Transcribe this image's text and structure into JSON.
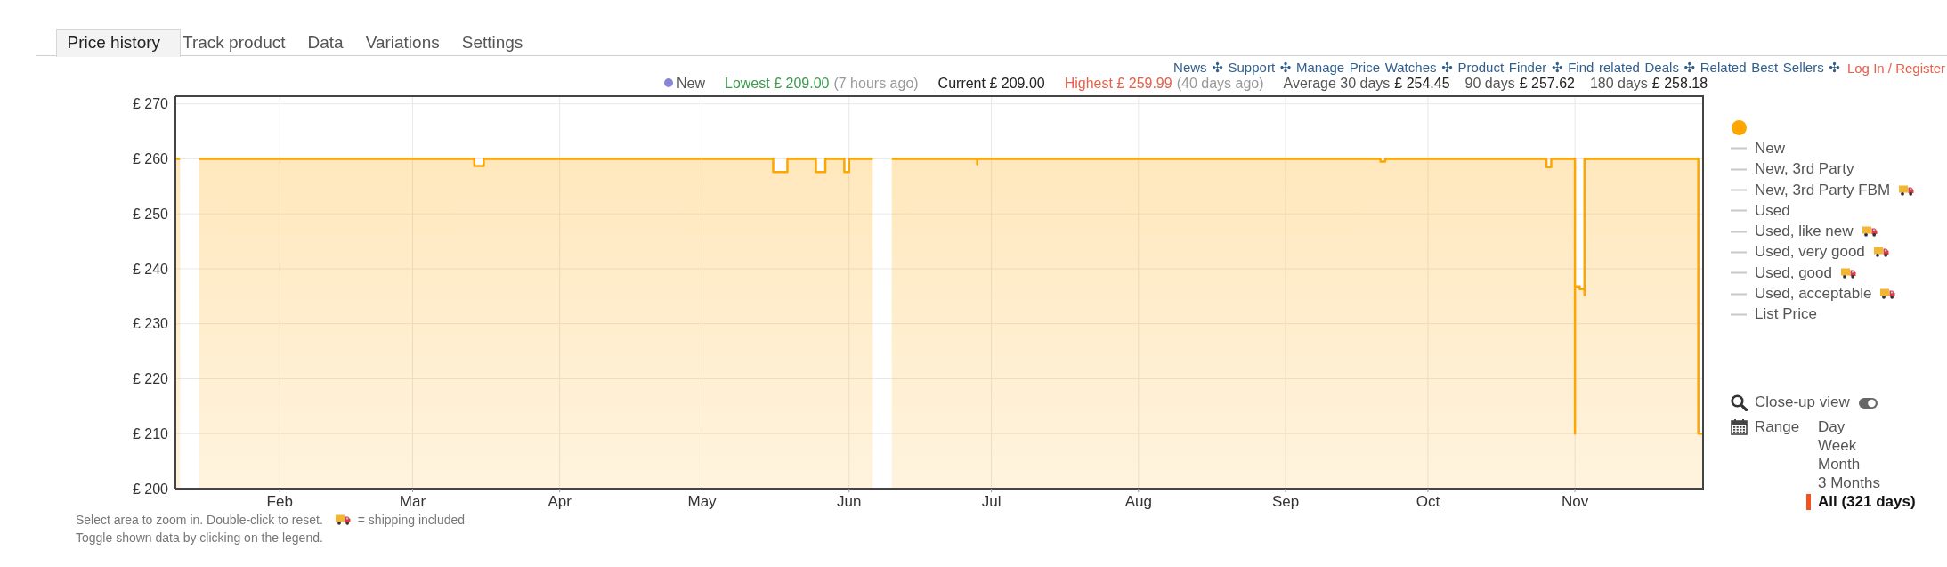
{
  "chart_data": {
    "type": "area",
    "x": [
      "--01-10",
      "--01-11",
      "--01-13",
      "--01-15",
      "--03-14",
      "--03-14",
      "--03-16",
      "--03-16",
      "--05-16",
      "--05-16",
      "--05-19",
      "--05-19",
      "--05-25",
      "--05-25",
      "--05-27",
      "--05-27",
      "--05-31",
      "--05-31",
      "--06-01",
      "--06-01",
      "--06-06",
      "--06-08",
      "--06-10",
      "--06-28",
      "--06-28",
      "--06-28",
      "--09-21",
      "--09-21",
      "--09-22",
      "--09-22",
      "--10-26",
      "--10-26",
      "--10-27",
      "--10-27",
      "--11-01",
      "--11-01",
      "--11-01",
      "--11-01",
      "--11-02",
      "--11-02",
      "--11-03",
      "--11-03",
      "--11-03",
      "--11-27",
      "--11-27",
      "--11-28"
    ],
    "series": [
      {
        "color": "#ffa500",
        "values": [
          260,
          260,
          null,
          260,
          260,
          258.7,
          258.7,
          260,
          260,
          257.6,
          257.6,
          260,
          260,
          257.6,
          257.6,
          260,
          260,
          257.6,
          257.6,
          260,
          260,
          null,
          260,
          260,
          259,
          260,
          260,
          259.5,
          259.5,
          260,
          260,
          258.5,
          258.5,
          260,
          260,
          210,
          260,
          236.8,
          236.8,
          236.3,
          236.3,
          235.2,
          260,
          260,
          210,
          210
        ]
      },
      {
        "name": "New",
        "color": "#c8c8c8",
        "values": [
          null,
          null,
          null,
          null,
          null,
          null,
          null,
          null,
          null,
          null,
          null,
          null,
          null,
          null,
          null,
          null,
          null,
          null,
          null,
          null,
          null,
          null,
          null,
          null,
          null,
          null,
          null,
          null,
          null,
          null,
          null,
          null,
          null,
          null,
          null,
          null,
          null,
          null,
          null,
          null,
          null,
          null,
          null,
          null,
          null,
          null
        ]
      },
      {
        "name": "New, 3rd Party",
        "color": "#c8c8c8",
        "values": [
          null,
          null,
          null,
          null,
          null,
          null,
          null,
          null,
          null,
          null,
          null,
          null,
          null,
          null,
          null,
          null,
          null,
          null,
          null,
          null,
          null,
          null,
          null,
          null,
          null,
          null,
          null,
          null,
          null,
          null,
          null,
          null,
          null,
          null,
          null,
          null,
          null,
          null,
          null,
          null,
          null,
          null,
          null,
          null,
          null,
          null
        ]
      },
      {
        "name": "New, 3rd Party FBM",
        "color": "#c8c8c8",
        "values": [
          null,
          null,
          null,
          null,
          null,
          null,
          null,
          null,
          null,
          null,
          null,
          null,
          null,
          null,
          null,
          null,
          null,
          null,
          null,
          null,
          null,
          null,
          null,
          null,
          null,
          null,
          null,
          null,
          null,
          null,
          null,
          null,
          null,
          null,
          null,
          null,
          null,
          null,
          null,
          null,
          null,
          null,
          null,
          null,
          null,
          null
        ]
      },
      {
        "name": "Used",
        "color": "#c8c8c8",
        "values": [
          null,
          null,
          null,
          null,
          null,
          null,
          null,
          null,
          null,
          null,
          null,
          null,
          null,
          null,
          null,
          null,
          null,
          null,
          null,
          null,
          null,
          null,
          null,
          null,
          null,
          null,
          null,
          null,
          null,
          null,
          null,
          null,
          null,
          null,
          null,
          null,
          null,
          null,
          null,
          null,
          null,
          null,
          null,
          null,
          null,
          null
        ]
      },
      {
        "name": "Used, like new",
        "color": "#c8c8c8",
        "values": [
          null,
          null,
          null,
          null,
          null,
          null,
          null,
          null,
          null,
          null,
          null,
          null,
          null,
          null,
          null,
          null,
          null,
          null,
          null,
          null,
          null,
          null,
          null,
          null,
          null,
          null,
          null,
          null,
          null,
          null,
          null,
          null,
          null,
          null,
          null,
          null,
          null,
          null,
          null,
          null,
          null,
          null,
          null,
          null,
          null,
          null
        ]
      },
      {
        "name": "Used, very good",
        "color": "#c8c8c8",
        "values": [
          null,
          null,
          null,
          null,
          null,
          null,
          null,
          null,
          null,
          null,
          null,
          null,
          null,
          null,
          null,
          null,
          null,
          null,
          null,
          null,
          null,
          null,
          null,
          null,
          null,
          null,
          null,
          null,
          null,
          null,
          null,
          null,
          null,
          null,
          null,
          null,
          null,
          null,
          null,
          null,
          null,
          null,
          null,
          null,
          null,
          null
        ]
      },
      {
        "name": "Used, good",
        "color": "#c8c8c8",
        "values": [
          null,
          null,
          null,
          null,
          null,
          null,
          null,
          null,
          null,
          null,
          null,
          null,
          null,
          null,
          null,
          null,
          null,
          null,
          null,
          null,
          null,
          null,
          null,
          null,
          null,
          null,
          null,
          null,
          null,
          null,
          null,
          null,
          null,
          null,
          null,
          null,
          null,
          null,
          null,
          null,
          null,
          null,
          null,
          null,
          null,
          null
        ]
      },
      {
        "name": "Used, acceptable",
        "color": "#c8c8c8",
        "values": [
          null,
          null,
          null,
          null,
          null,
          null,
          null,
          null,
          null,
          null,
          null,
          null,
          null,
          null,
          null,
          null,
          null,
          null,
          null,
          null,
          null,
          null,
          null,
          null,
          null,
          null,
          null,
          null,
          null,
          null,
          null,
          null,
          null,
          null,
          null,
          null,
          null,
          null,
          null,
          null,
          null,
          null,
          null,
          null,
          null,
          null
        ]
      },
      {
        "name": "List Price",
        "color": "#c8c8c8",
        "values": [
          null,
          null,
          null,
          null,
          null,
          null,
          null,
          null,
          null,
          null,
          null,
          null,
          null,
          null,
          null,
          null,
          null,
          null,
          null,
          null,
          null,
          null,
          null,
          null,
          null,
          null,
          null,
          null,
          null,
          null,
          null,
          null,
          null,
          null,
          null,
          null,
          null,
          null,
          null,
          null,
          null,
          null,
          null,
          null,
          null,
          null
        ]
      }
    ],
    "xlim": [
      "--01-10",
      "--11-28"
    ],
    "xticks": [
      {
        "value": "--02-01",
        "label": "Feb"
      },
      {
        "value": "--03-01",
        "label": "Mar"
      },
      {
        "value": "--04-01",
        "label": "Apr"
      },
      {
        "value": "--05-01",
        "label": "May"
      },
      {
        "value": "--06-01",
        "label": "Jun"
      },
      {
        "value": "--07-01",
        "label": "Jul"
      },
      {
        "value": "--08-01",
        "label": "Aug"
      },
      {
        "value": "--09-01",
        "label": "Sep"
      },
      {
        "value": "--10-01",
        "label": "Oct"
      },
      {
        "value": "--11-01",
        "label": "Nov"
      }
    ],
    "ylim": [
      200,
      271.4
    ],
    "yticks": [
      {
        "value": 200,
        "label": "£ 200"
      },
      {
        "value": 210,
        "label": "£ 210"
      },
      {
        "value": 220,
        "label": "£ 220"
      },
      {
        "value": 230,
        "label": "£ 230"
      },
      {
        "value": 240,
        "label": "£ 240"
      },
      {
        "value": 250,
        "label": "£ 250"
      },
      {
        "value": 260,
        "label": "£ 260"
      },
      {
        "value": 270,
        "label": "£ 270"
      }
    ],
    "grid": true,
    "legend": "right",
    "annotations": [
      "Price history",
      "Track product",
      "Data",
      "Variations",
      "Settings",
      "News ✣ Support ✣ Manage Price Watches ✣ Product Finder ✣ Find related Deals ✣ Related Best Sellers ✣",
      "Log In / Register",
      "New",
      "Lowest £ 209.00",
      "(7 hours ago)",
      "Current £ 209.00",
      "Highest £ 259.99",
      "(40 days ago)",
      "Average 30 days",
      "£ 254.45",
      "90 days",
      "£ 257.62",
      "180 days",
      "£ 258.18",
      "Select area to zoom in. Double-click to reset.",
      "= shipping included",
      "Toggle shown data by clicking on the legend.",
      "Close-up view",
      "Range",
      "Day",
      "Week",
      "Month",
      "3 Months",
      "All (321 days)"
    ]
  }
}
